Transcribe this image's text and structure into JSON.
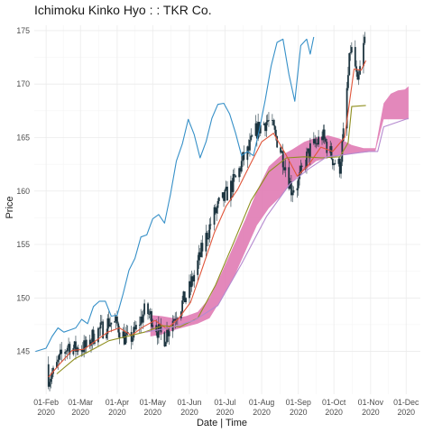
{
  "chart_data": {
    "type": "line",
    "title": "Ichimoku Kinko Hyo : : TKR Co.",
    "xlabel": "Date | Time",
    "ylabel": "Price",
    "xlim": [
      "2020-01-22",
      "2020-12-13"
    ],
    "ylim": [
      141,
      175.5
    ],
    "grid": true,
    "legend": "none",
    "x_ticks": [
      {
        "date": "2020-02-01",
        "line1": "01-Feb",
        "line2": "2020"
      },
      {
        "date": "2020-03-01",
        "line1": "01-Mar",
        "line2": "2020"
      },
      {
        "date": "2020-04-01",
        "line1": "01-Apr",
        "line2": "2020"
      },
      {
        "date": "2020-05-01",
        "line1": "01-May",
        "line2": "2020"
      },
      {
        "date": "2020-06-01",
        "line1": "01-Jun",
        "line2": "2020"
      },
      {
        "date": "2020-07-01",
        "line1": "01-Jul",
        "line2": "2020"
      },
      {
        "date": "2020-08-01",
        "line1": "01-Aug",
        "line2": "2020"
      },
      {
        "date": "2020-09-01",
        "line1": "01-Sep",
        "line2": "2020"
      },
      {
        "date": "2020-10-01",
        "line1": "01-Oct",
        "line2": "2020"
      },
      {
        "date": "2020-11-01",
        "line1": "01-Nov",
        "line2": "2020"
      },
      {
        "date": "2020-12-01",
        "line1": "01-Dec",
        "line2": "2020"
      }
    ],
    "y_ticks": [
      145,
      150,
      155,
      160,
      165,
      170,
      175
    ],
    "colors": {
      "cloud": "#e07bb4",
      "chikou": "#3690c8",
      "tenkan": "#e0553a",
      "kijun": "#8f8f1f",
      "candle": "#1d3540",
      "senkou": "#b58ad0"
    },
    "price_path": [
      [
        "2020-02-01",
        143.8
      ],
      [
        "2020-02-03",
        142.6
      ],
      [
        "2020-02-07",
        142.9
      ],
      [
        "2020-02-11",
        143.9
      ],
      [
        "2020-02-15",
        144.9
      ],
      [
        "2020-02-20",
        145.6
      ],
      [
        "2020-02-25",
        145.2
      ],
      [
        "2020-03-01",
        145.5
      ],
      [
        "2020-03-06",
        145.3
      ],
      [
        "2020-03-10",
        146.2
      ],
      [
        "2020-03-15",
        146.9
      ],
      [
        "2020-03-20",
        147.1
      ],
      [
        "2020-03-25",
        147.8
      ],
      [
        "2020-04-01",
        147.5
      ],
      [
        "2020-04-05",
        146.6
      ],
      [
        "2020-04-10",
        146.0
      ],
      [
        "2020-04-15",
        146.6
      ],
      [
        "2020-04-20",
        147.8
      ],
      [
        "2020-04-25",
        148.9
      ],
      [
        "2020-05-01",
        148.0
      ],
      [
        "2020-05-06",
        146.8
      ],
      [
        "2020-05-11",
        146.3
      ],
      [
        "2020-05-16",
        147.6
      ],
      [
        "2020-05-21",
        148.6
      ],
      [
        "2020-05-26",
        149.5
      ],
      [
        "2020-06-01",
        150.8
      ],
      [
        "2020-06-06",
        152.5
      ],
      [
        "2020-06-11",
        154.3
      ],
      [
        "2020-06-16",
        156.0
      ],
      [
        "2020-06-21",
        157.6
      ],
      [
        "2020-06-26",
        158.7
      ],
      [
        "2020-07-01",
        159.4
      ],
      [
        "2020-07-06",
        160.4
      ],
      [
        "2020-07-11",
        161.3
      ],
      [
        "2020-07-16",
        162.9
      ],
      [
        "2020-07-21",
        163.8
      ],
      [
        "2020-07-26",
        165.4
      ],
      [
        "2020-08-01",
        166.2
      ],
      [
        "2020-08-06",
        166.6
      ],
      [
        "2020-08-11",
        165.6
      ],
      [
        "2020-08-16",
        164.2
      ],
      [
        "2020-08-21",
        162.4
      ],
      [
        "2020-08-26",
        160.2
      ],
      [
        "2020-09-01",
        160.8
      ],
      [
        "2020-09-06",
        162.6
      ],
      [
        "2020-09-11",
        163.9
      ],
      [
        "2020-09-16",
        164.4
      ],
      [
        "2020-09-21",
        165.2
      ],
      [
        "2020-09-26",
        164.0
      ],
      [
        "2020-10-01",
        162.8
      ],
      [
        "2020-10-06",
        162.3
      ],
      [
        "2020-10-09",
        165.2
      ],
      [
        "2020-10-12",
        169.4
      ],
      [
        "2020-10-15",
        173.3
      ],
      [
        "2020-10-18",
        172.6
      ],
      [
        "2020-10-21",
        169.6
      ],
      [
        "2020-10-24",
        172.2
      ],
      [
        "2020-10-27",
        174.1
      ]
    ],
    "series": [
      {
        "key": "chikou",
        "points": [
          [
            "2020-01-23",
            145.0
          ],
          [
            "2020-02-01",
            145.3
          ],
          [
            "2020-02-06",
            146.4
          ],
          [
            "2020-02-11",
            147.2
          ],
          [
            "2020-02-16",
            146.8
          ],
          [
            "2020-02-21",
            147.0
          ],
          [
            "2020-02-26",
            147.2
          ],
          [
            "2020-03-02",
            148.0
          ],
          [
            "2020-03-07",
            147.6
          ],
          [
            "2020-03-12",
            149.2
          ],
          [
            "2020-03-17",
            149.7
          ],
          [
            "2020-03-22",
            149.7
          ],
          [
            "2020-03-27",
            148.3
          ],
          [
            "2020-04-01",
            148.4
          ],
          [
            "2020-04-06",
            150.4
          ],
          [
            "2020-04-11",
            152.6
          ],
          [
            "2020-04-16",
            153.7
          ],
          [
            "2020-04-21",
            155.7
          ],
          [
            "2020-04-26",
            155.9
          ],
          [
            "2020-05-01",
            157.4
          ],
          [
            "2020-05-06",
            157.8
          ],
          [
            "2020-05-11",
            157.0
          ],
          [
            "2020-05-16",
            159.7
          ],
          [
            "2020-05-21",
            162.8
          ],
          [
            "2020-05-26",
            164.4
          ],
          [
            "2020-05-31",
            166.7
          ],
          [
            "2020-06-05",
            165.3
          ],
          [
            "2020-06-10",
            163.1
          ],
          [
            "2020-06-15",
            164.6
          ],
          [
            "2020-06-20",
            166.8
          ],
          [
            "2020-06-25",
            168.1
          ],
          [
            "2020-06-30",
            168.2
          ],
          [
            "2020-07-05",
            167.2
          ],
          [
            "2020-07-10",
            165.4
          ],
          [
            "2020-07-15",
            163.3
          ],
          [
            "2020-07-20",
            163.7
          ],
          [
            "2020-07-25",
            163.3
          ],
          [
            "2020-07-30",
            165.7
          ],
          [
            "2020-08-04",
            168.5
          ],
          [
            "2020-08-09",
            171.7
          ],
          [
            "2020-08-14",
            173.9
          ],
          [
            "2020-08-19",
            174.2
          ],
          [
            "2020-08-24",
            170.9
          ],
          [
            "2020-08-29",
            168.4
          ],
          [
            "2020-09-03",
            173.6
          ],
          [
            "2020-09-08",
            174.2
          ],
          [
            "2020-09-11",
            172.8
          ],
          [
            "2020-09-14",
            174.4
          ]
        ]
      },
      {
        "key": "tenkan",
        "points": [
          [
            "2020-02-03",
            142.6
          ],
          [
            "2020-02-13",
            143.9
          ],
          [
            "2020-02-23",
            145.1
          ],
          [
            "2020-03-04",
            145.2
          ],
          [
            "2020-03-14",
            146.0
          ],
          [
            "2020-03-24",
            146.8
          ],
          [
            "2020-04-03",
            147.2
          ],
          [
            "2020-04-13",
            146.5
          ],
          [
            "2020-04-23",
            147.3
          ],
          [
            "2020-05-03",
            147.9
          ],
          [
            "2020-05-13",
            147.1
          ],
          [
            "2020-05-23",
            148.1
          ],
          [
            "2020-06-02",
            149.6
          ],
          [
            "2020-06-12",
            152.8
          ],
          [
            "2020-06-22",
            156.1
          ],
          [
            "2020-07-02",
            158.6
          ],
          [
            "2020-07-12",
            160.2
          ],
          [
            "2020-07-22",
            162.4
          ],
          [
            "2020-08-01",
            164.6
          ],
          [
            "2020-08-11",
            165.4
          ],
          [
            "2020-08-21",
            163.5
          ],
          [
            "2020-08-31",
            161.4
          ],
          [
            "2020-09-10",
            162.5
          ],
          [
            "2020-09-20",
            164.1
          ],
          [
            "2020-09-30",
            163.7
          ],
          [
            "2020-10-10",
            165.0
          ],
          [
            "2020-10-18",
            171.4
          ],
          [
            "2020-10-24",
            171.3
          ],
          [
            "2020-10-28",
            172.2
          ]
        ]
      },
      {
        "key": "kijun",
        "points": [
          [
            "2020-02-10",
            142.9
          ],
          [
            "2020-02-25",
            144.3
          ],
          [
            "2020-03-10",
            145.1
          ],
          [
            "2020-03-25",
            146.0
          ],
          [
            "2020-04-09",
            146.4
          ],
          [
            "2020-04-24",
            146.8
          ],
          [
            "2020-05-09",
            147.4
          ],
          [
            "2020-05-24",
            147.3
          ],
          [
            "2020-06-08",
            148.1
          ],
          [
            "2020-06-23",
            151.2
          ],
          [
            "2020-07-08",
            155.1
          ],
          [
            "2020-07-23",
            159.1
          ],
          [
            "2020-08-07",
            161.8
          ],
          [
            "2020-08-22",
            163.1
          ],
          [
            "2020-09-06",
            163.2
          ],
          [
            "2020-09-21",
            163.1
          ],
          [
            "2020-10-06",
            163.2
          ],
          [
            "2020-10-13",
            164.5
          ],
          [
            "2020-10-16",
            167.9
          ],
          [
            "2020-10-28",
            168.0
          ]
        ]
      },
      {
        "key": "senkou",
        "points": [
          [
            "2020-04-25",
            146.8
          ],
          [
            "2020-05-15",
            147.2
          ],
          [
            "2020-06-05",
            147.9
          ],
          [
            "2020-06-25",
            149.3
          ],
          [
            "2020-07-15",
            153.2
          ],
          [
            "2020-08-05",
            157.6
          ],
          [
            "2020-08-25",
            160.7
          ],
          [
            "2020-09-10",
            162.1
          ],
          [
            "2020-09-25",
            163.2
          ],
          [
            "2020-10-10",
            163.4
          ],
          [
            "2020-10-30",
            163.7
          ],
          [
            "2020-11-07",
            163.7
          ],
          [
            "2020-11-12",
            166.0
          ],
          [
            "2020-12-03",
            166.8
          ]
        ]
      }
    ],
    "cloud": [
      [
        "2020-04-29",
        146.4,
        148.4
      ],
      [
        "2020-05-09",
        146.6,
        148.3
      ],
      [
        "2020-05-19",
        147.0,
        148.1
      ],
      [
        "2020-05-29",
        147.3,
        148.3
      ],
      [
        "2020-06-08",
        147.6,
        148.7
      ],
      [
        "2020-06-18",
        148.1,
        150.0
      ],
      [
        "2020-06-28",
        149.9,
        152.3
      ],
      [
        "2020-07-08",
        151.8,
        154.8
      ],
      [
        "2020-07-18",
        154.3,
        157.3
      ],
      [
        "2020-07-28",
        156.8,
        160.0
      ],
      [
        "2020-08-07",
        158.4,
        162.3
      ],
      [
        "2020-08-17",
        159.5,
        163.3
      ],
      [
        "2020-08-27",
        160.9,
        163.9
      ],
      [
        "2020-09-06",
        161.9,
        164.6
      ],
      [
        "2020-09-16",
        162.8,
        165.0
      ],
      [
        "2020-09-26",
        163.1,
        165.2
      ],
      [
        "2020-10-06",
        163.3,
        164.9
      ],
      [
        "2020-10-16",
        163.5,
        164.3
      ],
      [
        "2020-10-26",
        163.6,
        164.0
      ],
      [
        "2020-11-05",
        163.7,
        164.0
      ],
      [
        "2020-11-12",
        166.7,
        168.2
      ],
      [
        "2020-11-18",
        166.7,
        169.1
      ],
      [
        "2020-11-24",
        166.7,
        169.4
      ],
      [
        "2020-11-30",
        166.7,
        169.5
      ],
      [
        "2020-12-03",
        166.7,
        169.8
      ]
    ]
  }
}
